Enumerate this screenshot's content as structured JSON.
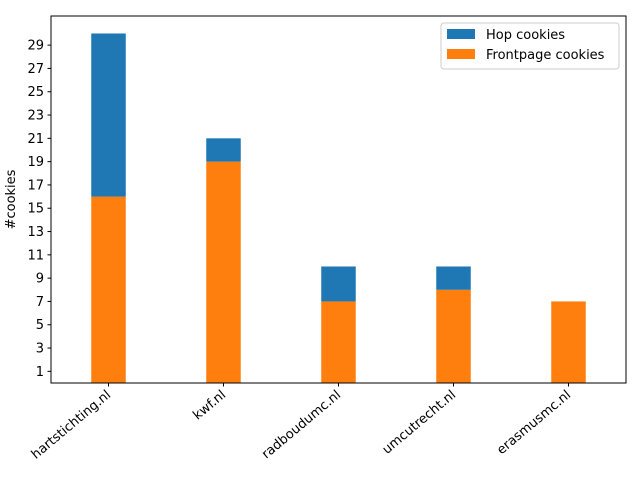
{
  "chart_data": {
    "type": "bar",
    "stacked": true,
    "categories": [
      "hartstichting.nl",
      "kwf.nl",
      "radboudumc.nl",
      "umcutrecht.nl",
      "erasmusmc.nl"
    ],
    "series": [
      {
        "name": "Frontpage cookies",
        "values": [
          16,
          19,
          7,
          8,
          7
        ],
        "color": "#ff7f0e"
      },
      {
        "name": "Hop cookies",
        "values": [
          14,
          2,
          3,
          2,
          0
        ],
        "color": "#1f77b4"
      }
    ],
    "totals": [
      30,
      21,
      10,
      10,
      7
    ],
    "ylabel": "#cookies",
    "xlabel": "",
    "ylim": [
      0,
      31.5
    ],
    "yticks": [
      1,
      3,
      5,
      7,
      9,
      11,
      13,
      15,
      17,
      19,
      21,
      23,
      25,
      27,
      29
    ],
    "grid": false,
    "legend": {
      "placement": "top-right",
      "entries": [
        {
          "label": "Hop cookies",
          "color": "#1f77b4"
        },
        {
          "label": "Frontpage cookies",
          "color": "#ff7f0e"
        }
      ]
    }
  }
}
